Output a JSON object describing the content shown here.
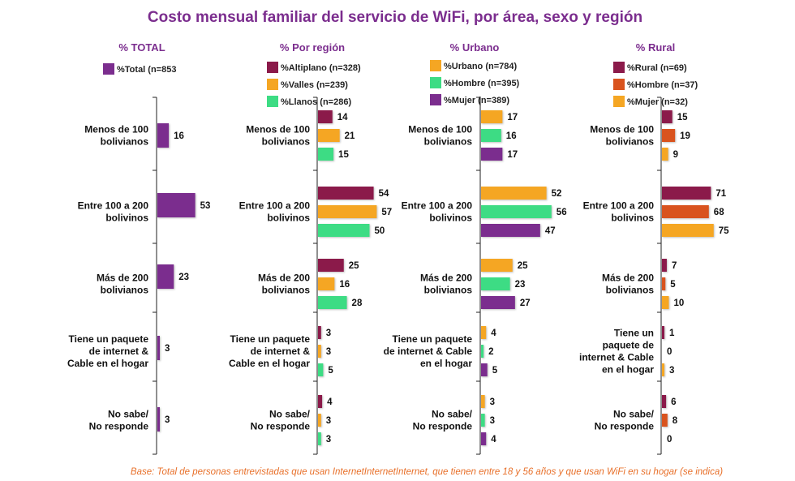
{
  "title": "Costo mensual familiar del servicio de WiFi, por área, sexo y región",
  "footnote": "Base: Total de personas entrevistadas que usan InternetInternetInternet, que tienen entre 18 y 56 años y que usan WiFi en su hogar (se indica)",
  "categories_total": [
    "Menos de 100\nbolivianos",
    "Entre 100 a 200\nbolivinos",
    "Más de 200\nbolivianos",
    "Tiene un paquete\nde internet &\nCable en el hogar",
    "No sabe/\nNo responde"
  ],
  "categories_region": [
    "Menos de 100\nbolivianos",
    "Entre 100 a 200\nbolivinos",
    "Más de 200\nbolivianos",
    "Tiene un paquete\nde internet &\nCable en el hogar",
    "No sabe/\nNo responde"
  ],
  "categories_urbano": [
    "Menos de 100\nbolivianos",
    "Entre 100 a 200\nbolivinos",
    "Más de 200\nbolivianos",
    "Tiene un paquete\nde internet & Cable\nen el hogar",
    "No sabe/\nNo responde"
  ],
  "categories_rural": [
    "Menos de 100\nbolivianos",
    "Entre 100 a 200\nbolivinos",
    "Más de 200\nbolivianos",
    "Tiene un\npaquete de\ninternet & Cable\nen el hogar",
    "No sabe/\nNo responde"
  ],
  "colors": {
    "purple": "#7b2d8e",
    "maroon": "#8b1a4a",
    "amber": "#f5a623",
    "green": "#3ddc84",
    "orange": "#d9531e",
    "title": "#7b2d8e",
    "footnote": "#e8702a"
  },
  "chart_data": [
    {
      "type": "bar",
      "orientation": "horizontal",
      "title": "% TOTAL",
      "categories_key": "categories_total",
      "series": [
        {
          "name": "%Total (n=853",
          "color": "#7b2d8e",
          "values": [
            16,
            53,
            23,
            3,
            3
          ]
        }
      ]
    },
    {
      "type": "bar",
      "orientation": "horizontal",
      "title": "% Por región",
      "categories_key": "categories_region",
      "series": [
        {
          "name": "%Altiplano (n=328)",
          "color": "#8b1a4a",
          "values": [
            14,
            54,
            25,
            3,
            4
          ]
        },
        {
          "name": "%Valles (n=239)",
          "color": "#f5a623",
          "values": [
            21,
            57,
            16,
            3,
            3
          ]
        },
        {
          "name": "%Llanos (n=286)",
          "color": "#3ddc84",
          "values": [
            15,
            50,
            28,
            5,
            3
          ]
        }
      ]
    },
    {
      "type": "bar",
      "orientation": "horizontal",
      "title": "% Urbano",
      "categories_key": "categories_urbano",
      "series": [
        {
          "name": "%Urbano (n=784)",
          "color": "#f5a623",
          "values": [
            17,
            52,
            25,
            4,
            3
          ]
        },
        {
          "name": "%Hombre (n=395)",
          "color": "#3ddc84",
          "values": [
            16,
            56,
            23,
            2,
            3
          ]
        },
        {
          "name": "%Mujer (n=389)",
          "color": "#7b2d8e",
          "values": [
            17,
            47,
            27,
            5,
            4
          ]
        }
      ]
    },
    {
      "type": "bar",
      "orientation": "horizontal",
      "title": "% Rural",
      "categories_key": "categories_rural",
      "series": [
        {
          "name": "%Rural (n=69)",
          "color": "#8b1a4a",
          "values": [
            15,
            71,
            7,
            1,
            6
          ]
        },
        {
          "name": "%Hombre (n=37)",
          "color": "#d9531e",
          "values": [
            19,
            68,
            5,
            0,
            8
          ]
        },
        {
          "name": "%Mujer (n=32)",
          "color": "#f5a623",
          "values": [
            9,
            75,
            10,
            3,
            0
          ]
        }
      ]
    }
  ]
}
